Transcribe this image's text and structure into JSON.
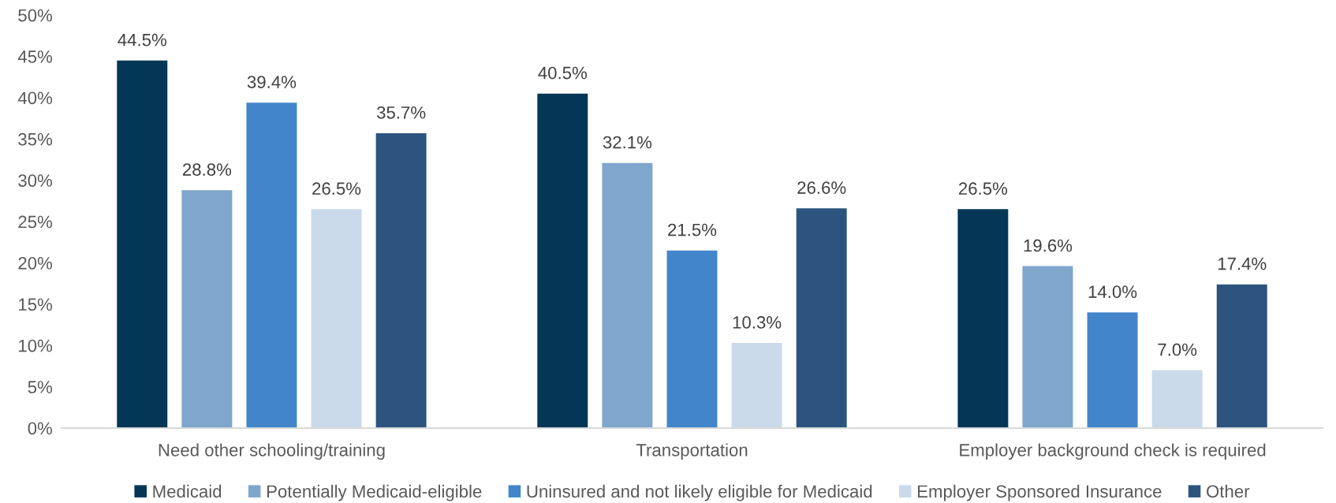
{
  "chart_data": {
    "type": "bar",
    "categories": [
      "Need other schooling/training",
      "Transportation",
      "Employer background check is required"
    ],
    "series": [
      {
        "name": "Medicaid",
        "color": "#043756",
        "values": [
          44.5,
          40.5,
          26.5
        ],
        "value_labels": [
          "44.5%",
          "40.5%",
          "26.5%"
        ]
      },
      {
        "name": "Potentially Medicaid-eligible",
        "color": "#7fa6cd",
        "values": [
          28.8,
          32.1,
          19.6
        ],
        "value_labels": [
          "28.8%",
          "32.1%",
          "19.6%"
        ]
      },
      {
        "name": "Uninsured and not likely eligible for Medicaid",
        "color": "#4285cb",
        "values": [
          39.4,
          21.5,
          14.0
        ],
        "value_labels": [
          "39.4%",
          "21.5%",
          "14.0%"
        ]
      },
      {
        "name": "Employer Sponsored Insurance",
        "color": "#cadaeb",
        "values": [
          26.5,
          10.3,
          7.0
        ],
        "value_labels": [
          "26.5%",
          "10.3%",
          "7.0%"
        ]
      },
      {
        "name": "Other",
        "color": "#2c547f",
        "values": [
          35.7,
          26.6,
          17.4
        ],
        "value_labels": [
          "35.7%",
          "26.6%",
          "17.4%"
        ]
      }
    ],
    "ylim": [
      0,
      50
    ],
    "yticks": [
      {
        "value": 0,
        "label": "0%"
      },
      {
        "value": 5,
        "label": "5%"
      },
      {
        "value": 10,
        "label": "10%"
      },
      {
        "value": 15,
        "label": "15%"
      },
      {
        "value": 20,
        "label": "20%"
      },
      {
        "value": 25,
        "label": "25%"
      },
      {
        "value": 30,
        "label": "30%"
      },
      {
        "value": 35,
        "label": "35%"
      },
      {
        "value": 40,
        "label": "40%"
      },
      {
        "value": 45,
        "label": "45%"
      },
      {
        "value": 50,
        "label": "50%"
      }
    ],
    "grid": false,
    "legend": "bottom"
  }
}
